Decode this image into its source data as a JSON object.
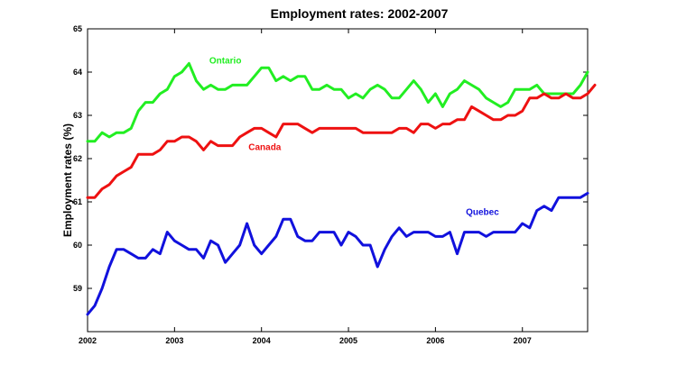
{
  "chart_data": {
    "type": "line",
    "title": "Employment rates: 2002-2007",
    "xlabel": "",
    "ylabel": "Employment rates (%)",
    "xlim": [
      2002,
      2007.75
    ],
    "ylim": [
      58,
      65
    ],
    "x_ticks": [
      2002,
      2003,
      2004,
      2005,
      2006,
      2007
    ],
    "x_tick_labels": [
      "2002",
      "2003",
      "2004",
      "2005",
      "2006",
      "2007"
    ],
    "y_ticks": [
      59,
      60,
      61,
      62,
      63,
      64,
      65
    ],
    "y_tick_labels": [
      "59",
      "60",
      "61",
      "62",
      "63",
      "64",
      "65"
    ],
    "grid": false,
    "legend": "none",
    "x_start": 2002,
    "x_step_months": 1,
    "series": [
      {
        "name": "Ontario",
        "color": "#22ee22",
        "values": [
          62.4,
          62.4,
          62.6,
          62.5,
          62.6,
          62.6,
          62.7,
          63.1,
          63.3,
          63.3,
          63.5,
          63.6,
          63.9,
          64.0,
          64.2,
          63.8,
          63.6,
          63.7,
          63.6,
          63.6,
          63.7,
          63.7,
          63.7,
          63.9,
          64.1,
          64.1,
          63.8,
          63.9,
          63.8,
          63.9,
          63.9,
          63.6,
          63.6,
          63.7,
          63.6,
          63.6,
          63.4,
          63.5,
          63.4,
          63.6,
          63.7,
          63.6,
          63.4,
          63.4,
          63.6,
          63.8,
          63.6,
          63.3,
          63.5,
          63.2,
          63.5,
          63.6,
          63.8,
          63.7,
          63.6,
          63.4,
          63.3,
          63.2,
          63.3,
          63.6,
          63.6,
          63.6,
          63.7,
          63.5,
          63.5,
          63.5,
          63.5,
          63.5,
          63.7,
          64.0
        ]
      },
      {
        "name": "Canada",
        "color": "#ee1111",
        "values": [
          61.1,
          61.1,
          61.3,
          61.4,
          61.6,
          61.7,
          61.8,
          62.1,
          62.1,
          62.1,
          62.2,
          62.4,
          62.4,
          62.5,
          62.5,
          62.4,
          62.2,
          62.4,
          62.3,
          62.3,
          62.3,
          62.5,
          62.6,
          62.7,
          62.7,
          62.6,
          62.5,
          62.8,
          62.8,
          62.8,
          62.7,
          62.6,
          62.7,
          62.7,
          62.7,
          62.7,
          62.7,
          62.7,
          62.6,
          62.6,
          62.6,
          62.6,
          62.6,
          62.7,
          62.7,
          62.6,
          62.8,
          62.8,
          62.7,
          62.8,
          62.8,
          62.9,
          62.9,
          63.2,
          63.1,
          63.0,
          62.9,
          62.9,
          63.0,
          63.0,
          63.1,
          63.4,
          63.4,
          63.5,
          63.4,
          63.4,
          63.5,
          63.4,
          63.4,
          63.5,
          63.7
        ]
      },
      {
        "name": "Quebec",
        "color": "#1111dd",
        "values": [
          58.4,
          58.6,
          59.0,
          59.5,
          59.9,
          59.9,
          59.8,
          59.7,
          59.7,
          59.9,
          59.8,
          60.3,
          60.1,
          60.0,
          59.9,
          59.9,
          59.7,
          60.1,
          60.0,
          59.6,
          59.8,
          60.0,
          60.5,
          60.0,
          59.8,
          60.0,
          60.2,
          60.6,
          60.6,
          60.2,
          60.1,
          60.1,
          60.3,
          60.3,
          60.3,
          60.0,
          60.3,
          60.2,
          60.0,
          60.0,
          59.5,
          59.9,
          60.2,
          60.4,
          60.2,
          60.3,
          60.3,
          60.3,
          60.2,
          60.2,
          60.3,
          59.8,
          60.3,
          60.3,
          60.3,
          60.2,
          60.3,
          60.3,
          60.3,
          60.3,
          60.5,
          60.4,
          60.8,
          60.9,
          60.8,
          61.1,
          61.1,
          61.1,
          61.1,
          61.2
        ]
      }
    ],
    "annotations": [
      {
        "text": "Ontario",
        "x": 2003.4,
        "y": 64.2,
        "color": "#22ee22"
      },
      {
        "text": "Canada",
        "x": 2003.85,
        "y": 62.2,
        "color": "#ee1111"
      },
      {
        "text": "Quebec",
        "x": 2006.35,
        "y": 60.7,
        "color": "#1111dd"
      }
    ]
  }
}
